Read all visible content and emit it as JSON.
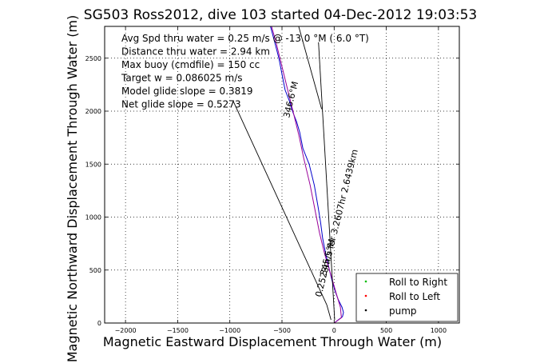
{
  "chart_data": {
    "type": "line",
    "title": "SG503 Ross2012, dive 103 started 04-Dec-2012 19:03:53",
    "xlabel": "Magnetic Eastward Displacement Through Water (m)",
    "ylabel": "Magnetic Northward Displacement Through Water (m)",
    "xlim": [
      -2200,
      1200
    ],
    "ylim": [
      0,
      2800
    ],
    "xticks": [
      -2000,
      -1500,
      -1000,
      -500,
      0,
      500,
      1000
    ],
    "yticks": [
      0,
      500,
      1000,
      1500,
      2000,
      2500
    ],
    "grid": true,
    "legend_position": "bottom-right",
    "legend": [
      {
        "label": "Roll to Right",
        "color": "#00bb00"
      },
      {
        "label": "Roll to Left",
        "color": "#ff0000"
      },
      {
        "label": "pump",
        "color": "#000000"
      }
    ],
    "annotations": [
      "Avg Spd thru water =  0.25 m/s @ -13.0    °M (  6.0 °T)",
      "Distance thru water =  2.94 km",
      "Max buoy (cmdfile) = 150 cc",
      "Target w = 0.086025 m/s",
      "Model glide slope = 0.3819",
      "Net glide slope = 0.5273"
    ],
    "rotated_labels": [
      {
        "text": "0.2523m/s for 3.2607hr 2.6439km",
        "angle_deg": -76
      },
      {
        "text": "346.6°M",
        "angle_deg": -76,
        "at": "upper"
      },
      {
        "text": "345.5°M",
        "angle_deg": -76,
        "at": "lower"
      }
    ],
    "series": [
      {
        "name": "track",
        "color": "#0000cc",
        "x": [
          0,
          40,
          80,
          90,
          75,
          40,
          10,
          -20,
          -50,
          -80,
          -110,
          -130,
          -155,
          -190,
          -240,
          -300,
          -330,
          -360,
          -400,
          -430,
          -470,
          -500,
          -530,
          -570,
          -610
        ],
        "y": [
          0,
          30,
          60,
          100,
          150,
          220,
          300,
          400,
          520,
          650,
          800,
          950,
          1100,
          1300,
          1500,
          1650,
          1800,
          1900,
          2000,
          2100,
          2200,
          2350,
          2500,
          2650,
          2800
        ]
      },
      {
        "name": "model",
        "color": "#990099",
        "x": [
          0,
          70,
          60,
          20,
          -30,
          -90,
          -140,
          -180,
          -230,
          -290,
          -340,
          -390,
          -440,
          -500,
          -560,
          -600
        ],
        "y": [
          0,
          50,
          150,
          280,
          450,
          650,
          850,
          1050,
          1300,
          1550,
          1780,
          1980,
          2180,
          2420,
          2660,
          2800
        ]
      },
      {
        "name": "lines",
        "color": "#000000",
        "segments": [
          [
            [
              -340,
              2800
            ],
            [
              -120,
              2020
            ]
          ],
          [
            [
              -970,
              2100
            ],
            [
              -70,
              170
            ]
          ],
          [
            [
              -70,
              170
            ],
            [
              -30,
              30
            ]
          ],
          [
            [
              -150,
              2650
            ],
            [
              5,
              30
            ]
          ]
        ]
      }
    ]
  }
}
